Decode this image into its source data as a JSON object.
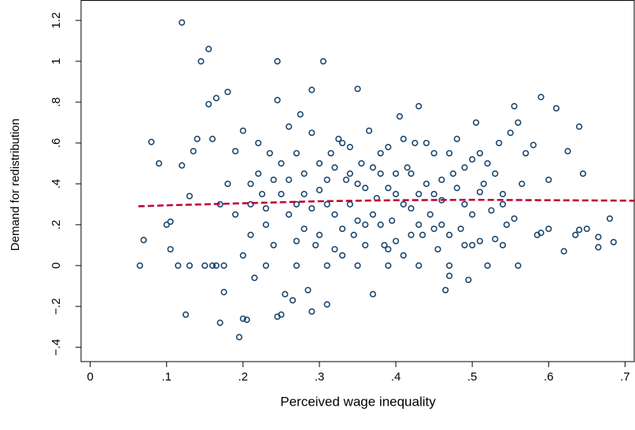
{
  "chart_data": {
    "type": "scatter",
    "x_label": "Perceived wage inequality",
    "y_label": "Demand for redistribution",
    "xlim": [
      -0.012,
      0.712
    ],
    "ylim": [
      -0.47,
      1.3
    ],
    "xticks": [
      0,
      {
        "value": 0.1,
        "label": ".1"
      },
      {
        "value": 0.2,
        "label": ".2"
      },
      {
        "value": 0.3,
        "label": ".3"
      },
      {
        "value": 0.4,
        "label": ".4"
      },
      {
        "value": 0.5,
        "label": ".5"
      },
      {
        "value": 0.6,
        "label": ".6"
      },
      {
        "value": 0.7,
        "label": ".7"
      }
    ],
    "yticks": [
      {
        "value": -0.4,
        "label": "−.4"
      },
      {
        "value": -0.2,
        "label": "−.2"
      },
      0,
      {
        "value": 0.2,
        "label": ".2"
      },
      {
        "value": 0.4,
        "label": ".4"
      },
      {
        "value": 0.6,
        "label": ".6"
      },
      {
        "value": 0.8,
        "label": ".8"
      },
      1,
      1.2
    ],
    "grid": false,
    "series": [
      {
        "type": "scatter",
        "color": "#1a476f",
        "x": [
          0.065,
          0.07,
          0.08,
          0.09,
          0.1,
          0.105,
          0.105,
          0.115,
          0.12,
          0.125,
          0.13,
          0.12,
          0.13,
          0.135,
          0.14,
          0.145,
          0.15,
          0.155,
          0.155,
          0.16,
          0.16,
          0.165,
          0.165,
          0.17,
          0.175,
          0.175,
          0.18,
          0.18,
          0.19,
          0.195,
          0.2,
          0.205,
          0.2,
          0.21,
          0.21,
          0.215,
          0.22,
          0.225,
          0.23,
          0.235,
          0.245,
          0.245,
          0.245,
          0.25,
          0.255,
          0.26,
          0.265,
          0.27,
          0.275,
          0.28,
          0.285,
          0.29,
          0.29,
          0.295,
          0.3,
          0.305,
          0.31,
          0.315,
          0.32,
          0.325,
          0.33,
          0.335,
          0.34,
          0.345,
          0.35,
          0.355,
          0.36,
          0.365,
          0.37,
          0.375,
          0.38,
          0.385,
          0.39,
          0.395,
          0.4,
          0.405,
          0.41,
          0.415,
          0.42,
          0.425,
          0.43,
          0.435,
          0.44,
          0.445,
          0.45,
          0.455,
          0.46,
          0.465,
          0.47,
          0.475,
          0.48,
          0.485,
          0.49,
          0.495,
          0.5,
          0.505,
          0.51,
          0.515,
          0.52,
          0.525,
          0.53,
          0.535,
          0.54,
          0.545,
          0.55,
          0.555,
          0.555,
          0.56,
          0.56,
          0.565,
          0.57,
          0.58,
          0.585,
          0.59,
          0.59,
          0.6,
          0.6,
          0.61,
          0.62,
          0.625,
          0.635,
          0.64,
          0.64,
          0.645,
          0.65,
          0.665,
          0.665,
          0.68,
          0.685,
          0.2,
          0.22,
          0.24,
          0.26,
          0.28,
          0.3,
          0.32,
          0.34,
          0.36,
          0.38,
          0.4,
          0.42,
          0.44,
          0.46,
          0.48,
          0.5,
          0.52,
          0.54,
          0.25,
          0.27,
          0.29,
          0.31,
          0.33,
          0.35,
          0.37,
          0.39,
          0.41,
          0.43,
          0.45,
          0.47,
          0.49,
          0.51,
          0.53,
          0.23,
          0.25,
          0.27,
          0.29,
          0.31,
          0.33,
          0.35,
          0.37,
          0.39,
          0.41,
          0.43,
          0.45,
          0.47,
          0.49,
          0.51,
          0.21,
          0.19,
          0.17,
          0.23,
          0.27,
          0.31,
          0.35,
          0.39,
          0.43,
          0.47,
          0.26,
          0.3,
          0.34,
          0.38,
          0.42,
          0.46,
          0.5,
          0.54,
          0.24,
          0.28,
          0.32,
          0.36,
          0.4
        ],
        "values": [
          0,
          0.125,
          0.605,
          0.5,
          0.2,
          0.215,
          0.08,
          0,
          1.19,
          -0.24,
          0,
          0.49,
          0.34,
          0.56,
          0.62,
          1.0,
          0,
          1.06,
          0.79,
          0,
          0.62,
          0.82,
          0,
          -0.28,
          0,
          -0.13,
          0.85,
          0.4,
          0.56,
          -0.35,
          -0.26,
          -0.265,
          0.66,
          0.15,
          0.3,
          -0.06,
          0.45,
          0.35,
          0.2,
          0.55,
          1.0,
          0.81,
          -0.25,
          -0.24,
          -0.14,
          0.68,
          -0.17,
          0.3,
          0.74,
          0.45,
          -0.12,
          0.86,
          -0.225,
          0.1,
          0.37,
          1.0,
          -0.19,
          0.55,
          0.25,
          0.62,
          0.05,
          0.42,
          0.3,
          0.15,
          0.865,
          0.5,
          0.2,
          0.66,
          -0.14,
          0.33,
          0.45,
          0.1,
          0.58,
          0.22,
          0.35,
          0.73,
          0.05,
          0.48,
          0.28,
          0.6,
          0.78,
          0.15,
          0.4,
          0.25,
          0.55,
          0.08,
          0.32,
          -0.12,
          -0.05,
          0.45,
          0.62,
          0.18,
          0.3,
          -0.07,
          0.52,
          0.7,
          0.12,
          0.4,
          0,
          0.27,
          0.13,
          0.6,
          0.35,
          0.2,
          0.65,
          0.78,
          0.23,
          0.7,
          0,
          0.4,
          0.55,
          0.59,
          0.15,
          0.16,
          0.825,
          0.18,
          0.42,
          0.77,
          0.07,
          0.56,
          0.15,
          0.175,
          0.68,
          0.45,
          0.18,
          0.09,
          0.14,
          0.23,
          0.115,
          0.05,
          0.6,
          0.1,
          0.42,
          0.18,
          0.5,
          0.08,
          0.58,
          0.38,
          0.2,
          0.12,
          0.45,
          0.6,
          0.2,
          0.38,
          0.25,
          0.5,
          0.1,
          0.35,
          0.55,
          0.28,
          0.42,
          0.6,
          0.22,
          0.48,
          0.08,
          0.3,
          0.2,
          0.35,
          0.15,
          0.48,
          0.36,
          0.45,
          0.28,
          0.5,
          0.12,
          0.65,
          0.3,
          0.18,
          0.4,
          0.25,
          0.38,
          0.62,
          0.35,
          0.18,
          0.55,
          0.1,
          0.55,
          0.4,
          0.25,
          0.3,
          0,
          0,
          0,
          0,
          0,
          0,
          0,
          0.25,
          0.15,
          0.45,
          0.55,
          0.15,
          0.42,
          0.1,
          0.3,
          0.42,
          0.35,
          0.48,
          0.1,
          0.45
        ]
      },
      {
        "type": "line",
        "color": "#c10534",
        "dashed": true,
        "x": [
          0.063,
          0.1,
          0.2,
          0.3,
          0.4,
          0.5,
          0.6,
          0.7,
          0.78
        ],
        "values": [
          0.29,
          0.295,
          0.305,
          0.315,
          0.32,
          0.322,
          0.32,
          0.318,
          0.315
        ]
      }
    ]
  }
}
